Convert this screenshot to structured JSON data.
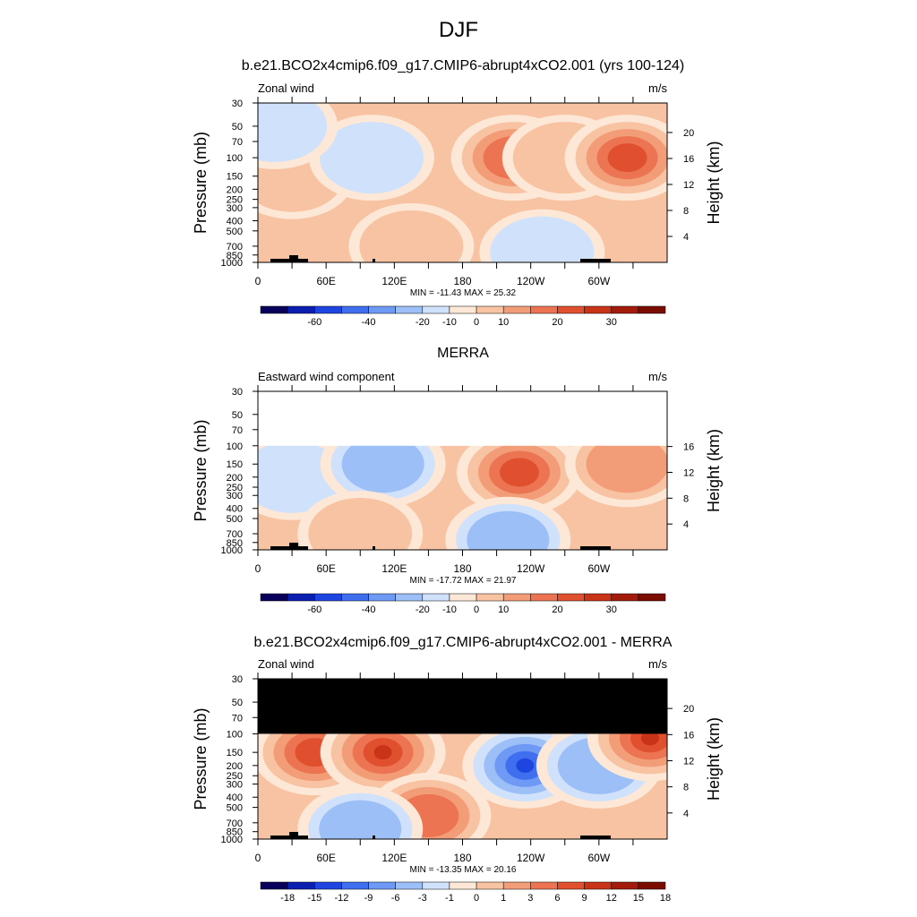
{
  "page": {
    "title": "DJF"
  },
  "chart_data": [
    {
      "type": "heatmap",
      "title": "b.e21.BCO2x4cmip6.f09_g17.CMIP6-abrupt4xCO2.001 (yrs 100-124)",
      "left_label": "Zonal wind",
      "units": "m/s",
      "ylabel": "Pressure (mb)",
      "ylabel_right": "Height (km)",
      "x_ticks": [
        "0",
        "60E",
        "120E",
        "180",
        "120W",
        "60W"
      ],
      "y_ticks": [
        "30",
        "50",
        "70",
        "100",
        "150",
        "200",
        "250",
        "300",
        "400",
        "500",
        "700",
        "850",
        "1000"
      ],
      "y_ticks_right": [
        "4",
        "8",
        "12",
        "16",
        "20"
      ],
      "stats": "MIN = -11.43  MAX =  25.32",
      "colorbar_labels": [
        "-60",
        "-40",
        "-20",
        "-10",
        "0",
        "10",
        "20",
        "30"
      ],
      "missing_above_mb": null,
      "field": [
        {
          "lon": 0,
          "p": 100,
          "level": 3
        },
        {
          "lon": 30,
          "p": 150,
          "level": 1
        },
        {
          "lon": 100,
          "p": 100,
          "level": -1
        },
        {
          "lon": 135,
          "p": 700,
          "level": 1
        },
        {
          "lon": 225,
          "p": 100,
          "level": 3
        },
        {
          "lon": 270,
          "p": 100,
          "level": 1
        },
        {
          "lon": 325,
          "p": 100,
          "level": 4
        },
        {
          "lon": 15,
          "p": 50,
          "level": -1
        },
        {
          "lon": 250,
          "p": 800,
          "level": -1
        }
      ]
    },
    {
      "type": "heatmap",
      "title": "MERRA",
      "left_label": "Eastward wind component",
      "units": "m/s",
      "ylabel": "Pressure (mb)",
      "ylabel_right": "Height (km)",
      "x_ticks": [
        "0",
        "60E",
        "120E",
        "180",
        "120W",
        "60W"
      ],
      "y_ticks": [
        "30",
        "50",
        "70",
        "100",
        "150",
        "200",
        "250",
        "300",
        "400",
        "500",
        "700",
        "850",
        "1000"
      ],
      "y_ticks_right": [
        "4",
        "8",
        "12",
        "16"
      ],
      "stats": "MIN = -17.72  MAX =  21.97",
      "colorbar_labels": [
        "-60",
        "-40",
        "-20",
        "-10",
        "0",
        "10",
        "20",
        "30"
      ],
      "missing_above_mb": 100,
      "field": [
        {
          "lon": 30,
          "p": 200,
          "level": -1
        },
        {
          "lon": 110,
          "p": 150,
          "level": -2
        },
        {
          "lon": 230,
          "p": 180,
          "level": 4
        },
        {
          "lon": 325,
          "p": 150,
          "level": 2
        },
        {
          "lon": 90,
          "p": 700,
          "level": 1
        },
        {
          "lon": 220,
          "p": 800,
          "level": -2
        }
      ]
    },
    {
      "type": "heatmap",
      "title": "b.e21.BCO2x4cmip6.f09_g17.CMIP6-abrupt4xCO2.001 - MERRA",
      "left_label": "Zonal wind",
      "units": "m/s",
      "ylabel": "Pressure (mb)",
      "ylabel_right": "Height (km)",
      "x_ticks": [
        "0",
        "60E",
        "120E",
        "180",
        "120W",
        "60W"
      ],
      "y_ticks": [
        "30",
        "50",
        "70",
        "100",
        "150",
        "200",
        "250",
        "300",
        "400",
        "500",
        "700",
        "850",
        "1000"
      ],
      "y_ticks_right": [
        "4",
        "8",
        "12",
        "16",
        "20"
      ],
      "stats": "MIN = -13.35  MAX =  20.16",
      "colorbar_labels": [
        "-18",
        "-15",
        "-12",
        "-9",
        "-6",
        "-3",
        "-1",
        "0",
        "1",
        "3",
        "6",
        "9",
        "12",
        "15",
        "18"
      ],
      "missing_above_mb": 100,
      "field": [
        {
          "lon": 50,
          "p": 150,
          "level": 4
        },
        {
          "lon": 110,
          "p": 150,
          "level": 5
        },
        {
          "lon": 235,
          "p": 200,
          "level": -7
        },
        {
          "lon": 300,
          "p": 200,
          "level": -2
        },
        {
          "lon": 345,
          "p": 110,
          "level": 6
        },
        {
          "lon": 150,
          "p": 600,
          "level": 3
        },
        {
          "lon": 90,
          "p": 800,
          "level": -2
        }
      ]
    }
  ],
  "colors": {
    "scale_main": [
      "#08005a",
      "#0a1fb0",
      "#1f45e0",
      "#3f6fef",
      "#6e9af5",
      "#9dbff7",
      "#cfe1fb",
      "#fde7d6",
      "#f8c3a2",
      "#f39d78",
      "#ec7452",
      "#e0502f",
      "#c93317",
      "#a31b0b",
      "#7a0d00"
    ],
    "scale_diff": [
      "#08005a",
      "#0a1fb0",
      "#1f45e0",
      "#3f6fef",
      "#6e9af5",
      "#9dbff7",
      "#cfe1fb",
      "#fde7d6",
      "#f8c3a2",
      "#f39d78",
      "#ec7452",
      "#e0502f",
      "#c93317",
      "#a31b0b",
      "#7a0d00"
    ],
    "missing": "#000000"
  }
}
